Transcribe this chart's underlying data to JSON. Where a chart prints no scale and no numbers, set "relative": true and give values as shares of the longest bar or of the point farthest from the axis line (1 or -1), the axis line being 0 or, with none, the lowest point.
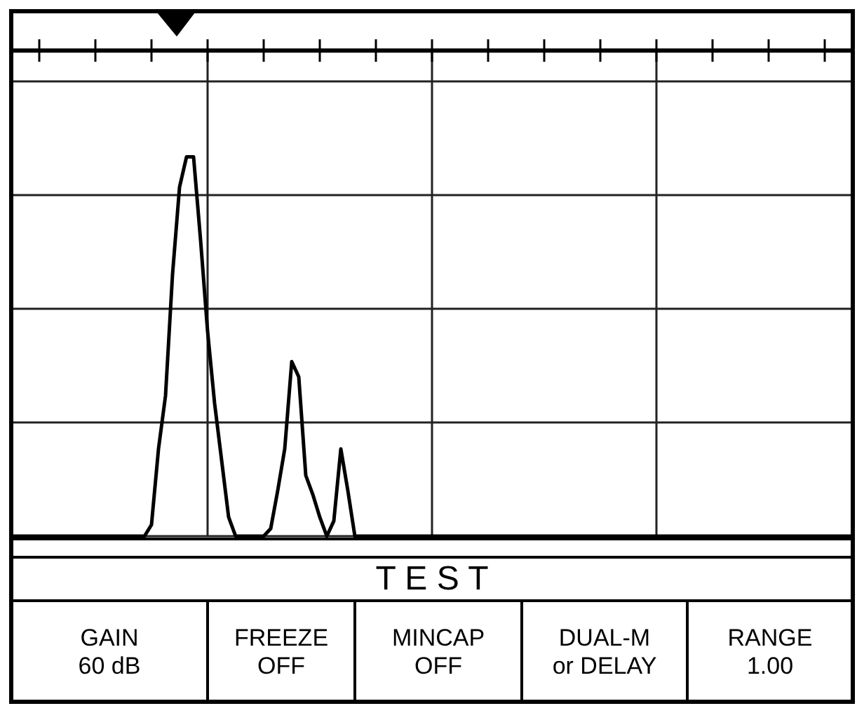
{
  "chart_data": {
    "type": "line",
    "relative": true,
    "grid": true,
    "color": "#000000",
    "line_style": "solid",
    "categories": [
      null,
      null,
      null,
      null,
      null,
      null,
      null,
      null,
      null,
      null,
      null,
      null,
      null,
      null,
      null,
      null,
      null,
      null,
      null,
      null,
      null,
      null,
      null,
      null,
      null,
      null,
      null,
      null,
      null,
      null,
      null,
      null,
      null,
      null,
      null,
      null,
      null,
      null,
      null,
      null,
      null,
      null,
      null,
      null,
      null,
      null,
      null,
      null,
      null,
      null,
      null,
      null,
      null,
      null,
      null,
      null,
      null,
      null,
      null,
      null,
      null,
      null,
      null,
      null,
      null,
      null,
      null,
      null,
      null,
      null,
      null,
      null,
      null,
      null,
      null,
      null,
      null,
      null,
      null,
      null,
      null,
      null,
      null,
      null,
      null,
      null,
      null,
      null,
      null,
      null,
      null,
      null,
      null,
      null,
      null,
      null,
      null,
      null,
      null,
      null,
      null,
      null,
      null,
      null,
      null,
      null,
      null,
      null,
      null,
      null,
      null,
      null,
      null,
      null,
      null,
      null,
      null,
      null,
      null,
      null,
      null
    ],
    "values": [
      0,
      0,
      0,
      0,
      0,
      0,
      0,
      0,
      0,
      0,
      0,
      0,
      0,
      0,
      0,
      0,
      0,
      0,
      0,
      0,
      0.03,
      0.23,
      0.37,
      0.69,
      0.92,
      1.0,
      1.0,
      0.78,
      0.54,
      0.35,
      0.2,
      0.05,
      0,
      0,
      0,
      0,
      0,
      0.02,
      0.12,
      0.23,
      0.46,
      0.42,
      0.16,
      0.11,
      0.05,
      0,
      0.04,
      0.23,
      0.12,
      0,
      0,
      0,
      0,
      0,
      0,
      0,
      0,
      0,
      0,
      0,
      0,
      0,
      0,
      0,
      0,
      0,
      0,
      0,
      0,
      0,
      0,
      0,
      0,
      0,
      0,
      0,
      0,
      0,
      0,
      0,
      0,
      0,
      0,
      0,
      0,
      0,
      0,
      0,
      0,
      0,
      0,
      0,
      0,
      0,
      0,
      0,
      0,
      0,
      0,
      0,
      0,
      0,
      0,
      0,
      0,
      0,
      0,
      0,
      0,
      0,
      0,
      0,
      0,
      0,
      0,
      0,
      0,
      0,
      0,
      0,
      0
    ],
    "annotations": [
      "T E S T",
      "GAIN\n60 dB",
      "FREEZE\nOFF",
      "MINCAP\nOFF",
      "DUAL-M\nor DELAY",
      "RANGE\n1.00"
    ]
  }
}
